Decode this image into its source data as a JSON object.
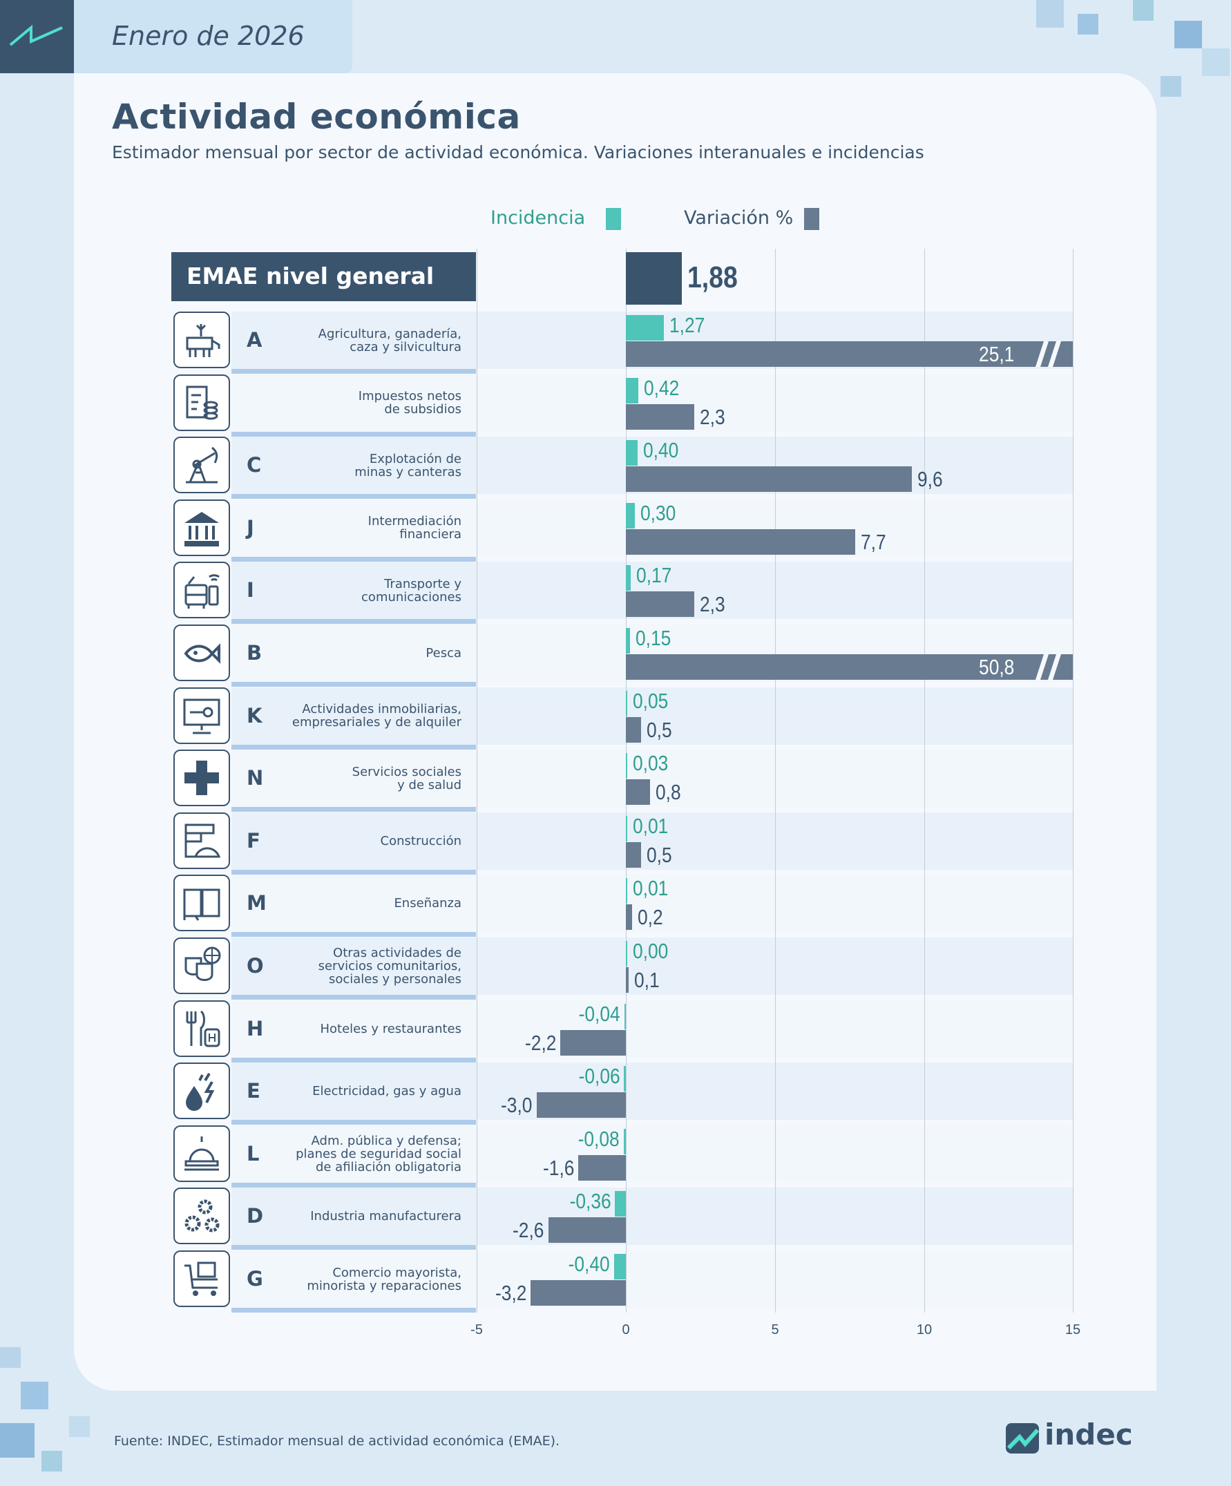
{
  "header": {
    "month": "Enero de 2026"
  },
  "title": "Actividad económica",
  "subtitle": "Estimador mensual por sector de actividad económica. Variaciones interanuales e incidencias",
  "colors": {
    "incidence": "#4fc4b8",
    "incidence_text": "#2f9f8f",
    "variation": "#687b90",
    "navy": "#3b546e",
    "background": "#dceaf6"
  },
  "chart_data": {
    "type": "bar",
    "orientation": "horizontal",
    "legend": [
      {
        "name": "Incidencia",
        "color": "#4fc4b8"
      },
      {
        "name": "Variación %",
        "color": "#3b546e"
      }
    ],
    "legend_position": "top",
    "xlim": [
      -5,
      15
    ],
    "xticks": [
      "-5",
      "0",
      "5",
      "10",
      "15"
    ],
    "grid": true,
    "general": {
      "label": "EMAE nivel general",
      "value": 1.88,
      "value_label": "1,88"
    },
    "rows": [
      {
        "letter": "A",
        "label": "Agricultura, ganadería,\ncaza y silvicultura",
        "icon": "cow-plant-icon",
        "incidence": 1.27,
        "incidence_label": "1,27",
        "variation": 25.1,
        "variation_label": "25,1"
      },
      {
        "letter": "",
        "label": "Impuestos netos\nde subsidios",
        "icon": "tax-document-coins-icon",
        "incidence": 0.42,
        "incidence_label": "0,42",
        "variation": 2.3,
        "variation_label": "2,3"
      },
      {
        "letter": "C",
        "label": "Explotación de\nminas y canteras",
        "icon": "oil-pump-icon",
        "incidence": 0.4,
        "incidence_label": "0,40",
        "variation": 9.6,
        "variation_label": "9,6"
      },
      {
        "letter": "J",
        "label": "Intermediación\nfinanciera",
        "icon": "bank-icon",
        "incidence": 0.3,
        "incidence_label": "0,30",
        "variation": 7.7,
        "variation_label": "7,7"
      },
      {
        "letter": "I",
        "label": "Transporte y\ncomunicaciones",
        "icon": "bus-phone-icon",
        "incidence": 0.17,
        "incidence_label": "0,17",
        "variation": 2.3,
        "variation_label": "2,3"
      },
      {
        "letter": "B",
        "label": "Pesca",
        "icon": "fish-icon",
        "incidence": 0.15,
        "incidence_label": "0,15",
        "variation": 50.8,
        "variation_label": "50,8"
      },
      {
        "letter": "K",
        "label": "Actividades inmobiliarias,\nempresariales y de alquiler",
        "icon": "monitor-key-icon",
        "incidence": 0.05,
        "incidence_label": "0,05",
        "variation": 0.5,
        "variation_label": "0,5"
      },
      {
        "letter": "N",
        "label": "Servicios sociales\ny de salud",
        "icon": "health-cross-icon",
        "incidence": 0.03,
        "incidence_label": "0,03",
        "variation": 0.8,
        "variation_label": "0,8"
      },
      {
        "letter": "F",
        "label": "Construcción",
        "icon": "bricks-helmet-icon",
        "incidence": 0.01,
        "incidence_label": "0,01",
        "variation": 0.5,
        "variation_label": "0,5"
      },
      {
        "letter": "M",
        "label": "Enseñanza",
        "icon": "book-icon",
        "incidence": 0.01,
        "incidence_label": "0,01",
        "variation": 0.2,
        "variation_label": "0,2"
      },
      {
        "letter": "O",
        "label": "Otras actividades de\nservicios comunitarios,\nsociales y personales",
        "icon": "theater-masks-icon",
        "incidence": 0.0,
        "incidence_label": "0,00",
        "variation": 0.1,
        "variation_label": "0,1"
      },
      {
        "letter": "H",
        "label": "Hoteles y restaurantes",
        "icon": "fork-knife-hotel-icon",
        "incidence": -0.04,
        "incidence_label": "-0,04",
        "variation": -2.2,
        "variation_label": "-2,2"
      },
      {
        "letter": "E",
        "label": "Electricidad, gas y agua",
        "icon": "drop-lightning-icon",
        "incidence": -0.06,
        "incidence_label": "-0,06",
        "variation": -3.0,
        "variation_label": "-3,0"
      },
      {
        "letter": "L",
        "label": "Adm. pública y defensa;\nplanes de seguridad social\nde afiliación obligatoria",
        "icon": "capitol-icon",
        "incidence": -0.08,
        "incidence_label": "-0,08",
        "variation": -1.6,
        "variation_label": "-1,6"
      },
      {
        "letter": "D",
        "label": "Industria manufacturera",
        "icon": "gears-icon",
        "incidence": -0.36,
        "incidence_label": "-0,36",
        "variation": -2.6,
        "variation_label": "-2,6"
      },
      {
        "letter": "G",
        "label": "Comercio mayorista,\nminorista y reparaciones",
        "icon": "cart-icon",
        "incidence": -0.4,
        "incidence_label": "-0,40",
        "variation": -3.2,
        "variation_label": "-3,2"
      }
    ]
  },
  "footer": {
    "source": "Fuente: INDEC, Estimador mensual de actividad económica (EMAE).",
    "logo": "indec"
  }
}
